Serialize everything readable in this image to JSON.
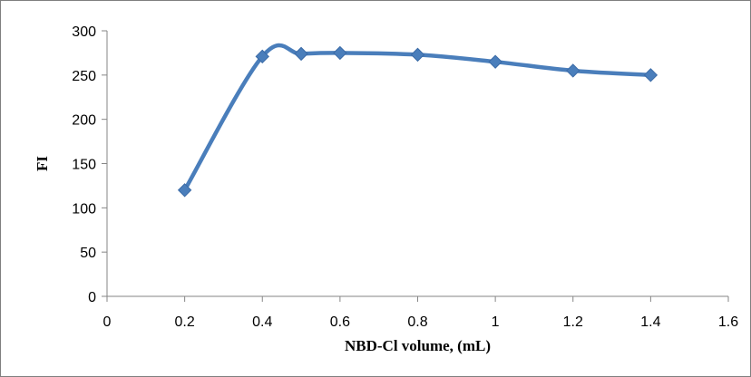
{
  "chart_data": {
    "type": "line",
    "title": "",
    "xlabel": "NBD-Cl volume, (mL)",
    "ylabel": "FI",
    "xlim": [
      0,
      1.6
    ],
    "ylim": [
      0,
      300
    ],
    "x_ticks": [
      "0",
      "0.2",
      "0.4",
      "0.6",
      "0.8",
      "1",
      "1.2",
      "1.4",
      "1.6"
    ],
    "y_ticks": [
      "0",
      "50",
      "100",
      "150",
      "200",
      "250",
      "300"
    ],
    "x": [
      0.2,
      0.4,
      0.5,
      0.6,
      0.8,
      1.0,
      1.2,
      1.4
    ],
    "series": [
      {
        "values": [
          120,
          271,
          274,
          275,
          273,
          265,
          255,
          250
        ],
        "color": "#4a7ebb",
        "marker": "diamond",
        "smooth": true
      }
    ],
    "grid": false,
    "legend": "none"
  }
}
